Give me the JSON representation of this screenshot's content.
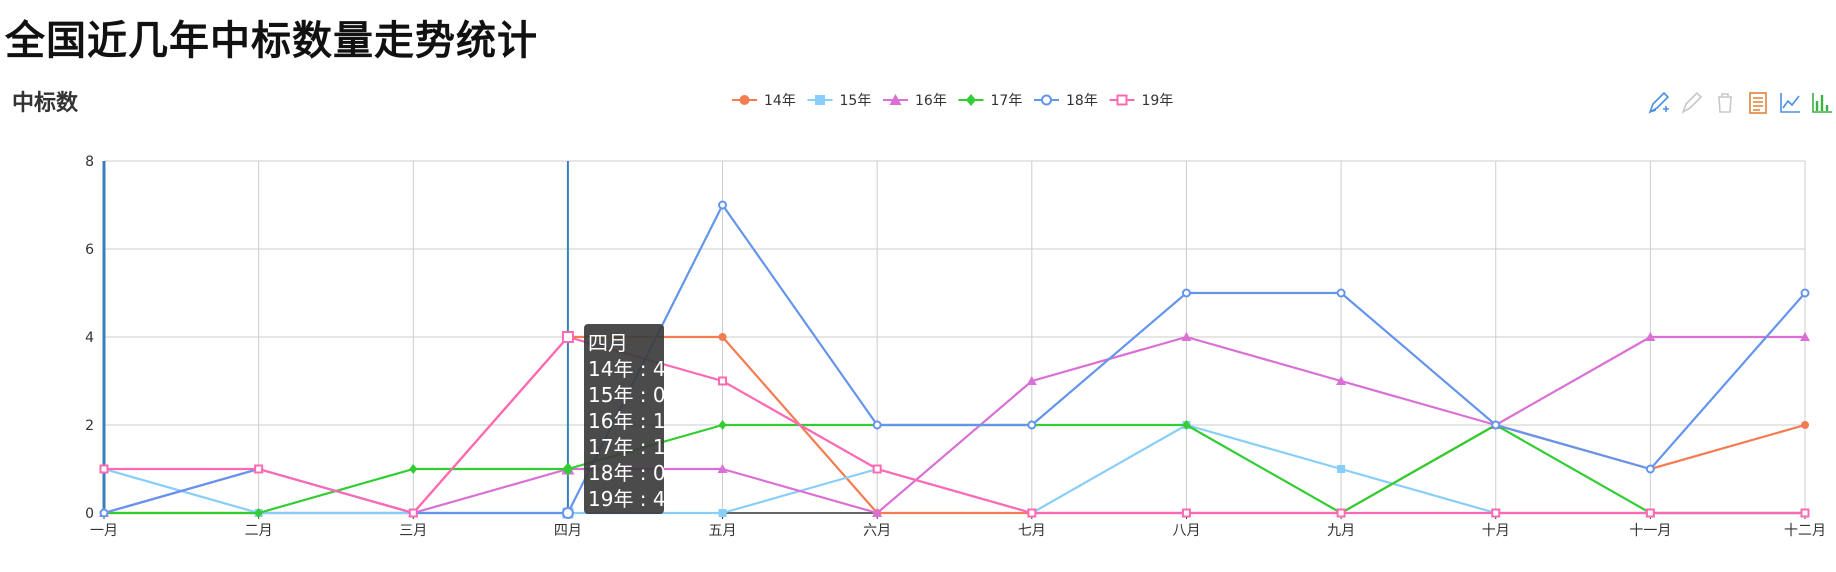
{
  "page": {
    "title": "全国近几年中标数量走势统计"
  },
  "toolbar": {
    "icons": [
      "mark-icon",
      "mark-undo-icon",
      "mark-clear-icon",
      "data-view-icon",
      "line-chart-icon",
      "bar-chart-icon"
    ]
  },
  "colors": {
    "14年": "#f47c50",
    "15年": "#87cefa",
    "16年": "#da70d6",
    "17年": "#32cd32",
    "18年": "#6495ed",
    "19年": "#ff69b4",
    "axis_pointer": "#3a7ebf",
    "tooltip_bg": "#3c3c3c"
  },
  "chart_data": {
    "type": "line",
    "title": "全国近几年中标数量走势统计",
    "ylabel": "中标数",
    "xlabel": "",
    "categories": [
      "一月",
      "二月",
      "三月",
      "四月",
      "五月",
      "六月",
      "七月",
      "八月",
      "九月",
      "十月",
      "十一月",
      "十二月"
    ],
    "ylim": [
      0,
      8
    ],
    "yticks": [
      0,
      2,
      4,
      6,
      8
    ],
    "grid": true,
    "legend_position": "top-center",
    "series": [
      {
        "name": "14年",
        "marker": "circle",
        "values": [
          0,
          0,
          0,
          4,
          4,
          0,
          0,
          0,
          0,
          2,
          1,
          2
        ]
      },
      {
        "name": "15年",
        "marker": "rect",
        "values": [
          1,
          0,
          0,
          0,
          0,
          1,
          0,
          2,
          1,
          0,
          0,
          0
        ]
      },
      {
        "name": "16年",
        "marker": "triangle",
        "values": [
          0,
          1,
          0,
          1,
          1,
          0,
          3,
          4,
          3,
          2,
          4,
          4
        ]
      },
      {
        "name": "17年",
        "marker": "diamond",
        "values": [
          0,
          0,
          1,
          1,
          2,
          2,
          2,
          2,
          0,
          2,
          0,
          0
        ]
      },
      {
        "name": "18年",
        "marker": "emptyCircle",
        "values": [
          0,
          1,
          0,
          0,
          7,
          2,
          2,
          5,
          5,
          2,
          1,
          5
        ]
      },
      {
        "name": "19年",
        "marker": "emptyRect",
        "values": [
          1,
          1,
          0,
          4,
          3,
          1,
          0,
          0,
          0,
          0,
          0,
          0
        ]
      }
    ],
    "tooltip": {
      "category": "四月",
      "lines": [
        "14年 : 4",
        "15年 : 0",
        "16年 : 1",
        "17年 : 1",
        "18年 : 0",
        "19年 : 4"
      ]
    }
  }
}
